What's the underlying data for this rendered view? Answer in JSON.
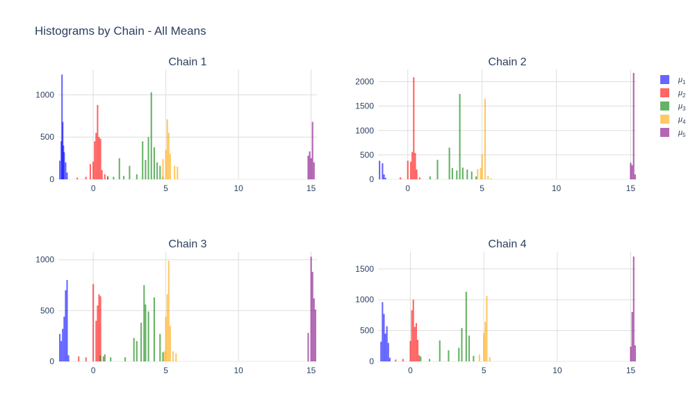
{
  "title": "Histograms by Chain - All Means",
  "chart_data": {
    "type": "bar",
    "mode": "overlay-histogram",
    "grid": true,
    "legend_position": "right",
    "series": [
      {
        "name": "μ",
        "sub": "1",
        "color": "#0000ff"
      },
      {
        "name": "μ",
        "sub": "2",
        "color": "#ff0000"
      },
      {
        "name": "μ",
        "sub": "3",
        "color": "#008000"
      },
      {
        "name": "μ",
        "sub": "4",
        "color": "#ffa500"
      },
      {
        "name": "μ",
        "sub": "5",
        "color": "#800080"
      }
    ],
    "subplots": [
      {
        "title": "Chain 1",
        "xlim": [
          -2.4,
          15.4
        ],
        "ylim": [
          0,
          1300
        ],
        "xticks": [
          0,
          5,
          10,
          15
        ],
        "yticks": [
          0,
          500,
          1000
        ],
        "bins": [
          [
            [
              -2.3,
              220
            ],
            [
              -2.2,
              450
            ],
            [
              -2.15,
              1240
            ],
            [
              -2.1,
              680
            ],
            [
              -2.05,
              400
            ],
            [
              -2.0,
              320
            ],
            [
              -1.9,
              200
            ],
            [
              -1.8,
              80
            ]
          ],
          [
            [
              -1.1,
              20
            ],
            [
              -0.5,
              30
            ],
            [
              -0.2,
              180
            ],
            [
              0.0,
              210
            ],
            [
              0.1,
              450
            ],
            [
              0.2,
              550
            ],
            [
              0.3,
              880
            ],
            [
              0.4,
              500
            ],
            [
              0.5,
              480
            ],
            [
              0.6,
              110
            ],
            [
              0.8,
              60
            ],
            [
              1.0,
              20
            ]
          ],
          [
            [
              1.0,
              40
            ],
            [
              1.4,
              30
            ],
            [
              1.8,
              250
            ],
            [
              2.1,
              40
            ],
            [
              2.5,
              160
            ],
            [
              3.0,
              60
            ],
            [
              3.4,
              450
            ],
            [
              3.6,
              230
            ],
            [
              3.8,
              500
            ],
            [
              4.0,
              1030
            ],
            [
              4.2,
              380
            ],
            [
              4.4,
              200
            ],
            [
              4.6,
              160
            ],
            [
              4.8,
              30
            ]
          ],
          [
            [
              4.8,
              240
            ],
            [
              5.0,
              350
            ],
            [
              5.1,
              710
            ],
            [
              5.2,
              550
            ],
            [
              5.3,
              300
            ],
            [
              5.6,
              160
            ],
            [
              5.8,
              150
            ]
          ],
          [
            [
              14.8,
              280
            ],
            [
              14.9,
              330
            ],
            [
              15.0,
              250
            ],
            [
              15.1,
              680
            ],
            [
              15.2,
              200
            ]
          ]
        ]
      },
      {
        "title": "Chain 2",
        "xlim": [
          -2.0,
          15.4
        ],
        "ylim": [
          0,
          2250
        ],
        "xticks": [
          0,
          5,
          10,
          15
        ],
        "yticks": [
          0,
          500,
          1000,
          1500,
          2000
        ],
        "bins": [
          [
            [
              -1.9,
              380
            ],
            [
              -1.7,
              330
            ],
            [
              -1.6,
              100
            ],
            [
              -1.5,
              30
            ]
          ],
          [
            [
              -0.5,
              40
            ],
            [
              0.0,
              380
            ],
            [
              0.2,
              360
            ],
            [
              0.3,
              560
            ],
            [
              0.4,
              2090
            ],
            [
              0.5,
              540
            ],
            [
              0.6,
              200
            ],
            [
              0.8,
              40
            ]
          ],
          [
            [
              1.5,
              60
            ],
            [
              2.0,
              400
            ],
            [
              2.8,
              650
            ],
            [
              3.0,
              230
            ],
            [
              3.3,
              180
            ],
            [
              3.5,
              1750
            ],
            [
              3.7,
              240
            ],
            [
              4.0,
              200
            ],
            [
              4.3,
              160
            ],
            [
              4.6,
              60
            ]
          ],
          [
            [
              4.7,
              210
            ],
            [
              4.9,
              230
            ],
            [
              5.0,
              510
            ],
            [
              5.2,
              1650
            ],
            [
              5.4,
              70
            ],
            [
              5.6,
              20
            ]
          ],
          [
            [
              15.0,
              340
            ],
            [
              15.1,
              290
            ],
            [
              15.2,
              2180
            ],
            [
              15.3,
              100
            ]
          ]
        ]
      },
      {
        "title": "Chain 3",
        "xlim": [
          -2.4,
          15.4
        ],
        "ylim": [
          0,
          1080
        ],
        "xticks": [
          0,
          5,
          10,
          15
        ],
        "yticks": [
          0,
          500,
          1000
        ],
        "bins": [
          [
            [
              -2.3,
              270
            ],
            [
              -2.2,
              200
            ],
            [
              -2.1,
              320
            ],
            [
              -2.0,
              440
            ],
            [
              -1.9,
              700
            ],
            [
              -1.8,
              800
            ],
            [
              -1.7,
              60
            ]
          ],
          [
            [
              -1.0,
              50
            ],
            [
              -0.5,
              40
            ],
            [
              0.0,
              760
            ],
            [
              0.2,
              400
            ],
            [
              0.3,
              550
            ],
            [
              0.4,
              660
            ],
            [
              0.5,
              640
            ],
            [
              0.7,
              50
            ]
          ],
          [
            [
              0.5,
              60
            ],
            [
              0.8,
              70
            ],
            [
              1.2,
              40
            ],
            [
              2.2,
              40
            ],
            [
              2.8,
              230
            ],
            [
              3.0,
              200
            ],
            [
              3.3,
              380
            ],
            [
              3.5,
              750
            ],
            [
              3.6,
              560
            ],
            [
              3.8,
              490
            ],
            [
              4.2,
              630
            ],
            [
              4.6,
              270
            ],
            [
              4.8,
              90
            ]
          ],
          [
            [
              4.9,
              100
            ],
            [
              5.0,
              440
            ],
            [
              5.1,
              660
            ],
            [
              5.2,
              990
            ],
            [
              5.3,
              350
            ],
            [
              5.5,
              100
            ],
            [
              5.7,
              80
            ]
          ],
          [
            [
              14.8,
              280
            ],
            [
              15.0,
              1030
            ],
            [
              15.1,
              880
            ],
            [
              15.2,
              620
            ],
            [
              15.3,
              510
            ]
          ]
        ]
      },
      {
        "title": "Chain 4",
        "xlim": [
          -2.2,
          15.4
        ],
        "ylim": [
          0,
          1780
        ],
        "xticks": [
          0,
          5,
          10,
          15
        ],
        "yticks": [
          0,
          500,
          1000,
          1500
        ],
        "bins": [
          [
            [
              -2.0,
              320
            ],
            [
              -1.9,
              960
            ],
            [
              -1.8,
              770
            ],
            [
              -1.7,
              450
            ],
            [
              -1.6,
              570
            ],
            [
              -1.5,
              300
            ],
            [
              -1.4,
              60
            ]
          ],
          [
            [
              -1.0,
              30
            ],
            [
              -0.5,
              40
            ],
            [
              0.0,
              330
            ],
            [
              0.1,
              830
            ],
            [
              0.2,
              1000
            ],
            [
              0.3,
              560
            ],
            [
              0.4,
              620
            ],
            [
              0.5,
              350
            ],
            [
              0.6,
              100
            ]
          ],
          [
            [
              0.7,
              80
            ],
            [
              1.3,
              40
            ],
            [
              2.0,
              340
            ],
            [
              2.6,
              180
            ],
            [
              3.3,
              220
            ],
            [
              3.5,
              540
            ],
            [
              3.8,
              1130
            ],
            [
              4.0,
              420
            ],
            [
              4.3,
              90
            ]
          ],
          [
            [
              4.7,
              110
            ],
            [
              5.0,
              460
            ],
            [
              5.1,
              640
            ],
            [
              5.2,
              1060
            ],
            [
              5.4,
              70
            ]
          ],
          [
            [
              15.0,
              240
            ],
            [
              15.1,
              800
            ],
            [
              15.2,
              1700
            ],
            [
              15.3,
              260
            ]
          ]
        ]
      }
    ]
  }
}
